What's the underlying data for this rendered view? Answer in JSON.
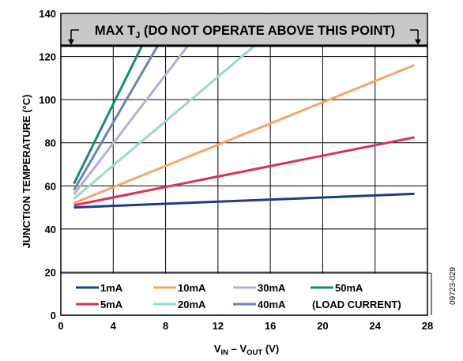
{
  "chart_data": {
    "type": "line",
    "xlabel": {
      "base": "V",
      "sub1": "IN",
      "mid": " – V",
      "sub2": "OUT",
      "tail": " (V)"
    },
    "ylabel": "JUNCTION TEMPERATURE (°C)",
    "xlim": [
      0,
      28
    ],
    "ylim": [
      0,
      140
    ],
    "xticks": [
      0,
      4,
      8,
      12,
      16,
      20,
      24,
      28
    ],
    "yticks": [
      0,
      20,
      40,
      60,
      80,
      100,
      120,
      140
    ],
    "grid": true,
    "limit": {
      "y": 125,
      "text": "MAX T",
      "sub": "J",
      "text_tail": " (DO NOT OPERATE ABOVE THIS POINT)",
      "color": "#c8c8c8"
    },
    "series": [
      {
        "name": "1mA",
        "color": "#1f3c88",
        "x": [
          1,
          27
        ],
        "y": [
          50,
          56.3
        ]
      },
      {
        "name": "5mA",
        "color": "#d6335a",
        "x": [
          1,
          27
        ],
        "y": [
          51,
          82.5
        ]
      },
      {
        "name": "10mA",
        "color": "#f4a46a",
        "x": [
          1,
          27
        ],
        "y": [
          52,
          116
        ]
      },
      {
        "name": "20mA",
        "color": "#9fd8c0",
        "x": [
          1,
          14.8
        ],
        "y": [
          54,
          125
        ]
      },
      {
        "name": "30mA",
        "color": "#b7add8",
        "x": [
          1,
          9.7
        ],
        "y": [
          56,
          125
        ]
      },
      {
        "name": "40mA",
        "color": "#6f82b8",
        "x": [
          1,
          7.4
        ],
        "y": [
          58,
          125
        ]
      },
      {
        "name": "50mA",
        "color": "#1a8a78",
        "x": [
          1,
          6.2
        ],
        "y": [
          61,
          125
        ]
      }
    ],
    "legend": {
      "placement": "bottom-left",
      "order": [
        "1mA",
        "10mA",
        "30mA",
        "50mA",
        "5mA",
        "20mA",
        "40mA"
      ],
      "note": "(LOAD CURRENT)"
    }
  },
  "figure_id": "09723-029"
}
